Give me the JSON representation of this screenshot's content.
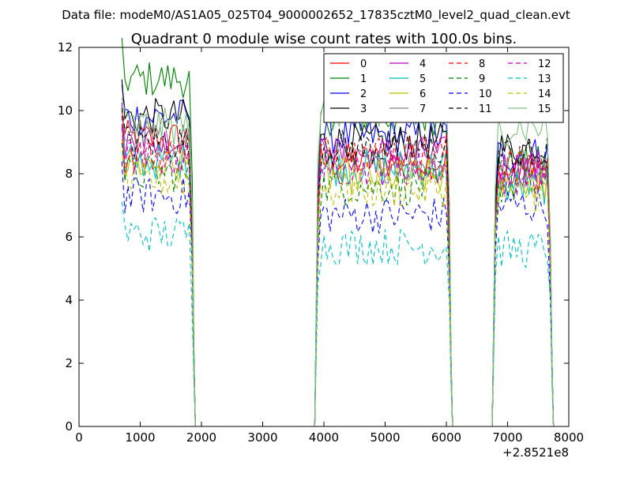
{
  "chart_data": {
    "type": "line",
    "suptitle": "Data file: modeM0/AS1A05_025T04_9000002652_17835cztM0_level2_quad_clean.evt",
    "title": "Quadrant 0 module wise count rates with 100.0s bins.",
    "xlabel": "",
    "ylabel": "",
    "x_offset_label": "+2.8521e8",
    "xlim": [
      0,
      8000
    ],
    "ylim": [
      0,
      12
    ],
    "x_ticks": [
      0,
      1000,
      2000,
      3000,
      4000,
      5000,
      6000,
      7000,
      8000
    ],
    "y_ticks": [
      0,
      2,
      4,
      6,
      8,
      10,
      12
    ],
    "grid": false,
    "legend_placement": "top-right, 4 columns",
    "segments": [
      {
        "x_start": 700,
        "x_step": 50,
        "n": 24
      },
      {
        "x_start": 3900,
        "x_step": 50,
        "n": 44
      },
      {
        "x_start": 6800,
        "x_step": 50,
        "n": 19
      }
    ],
    "gap_level": 0,
    "series": [
      {
        "name": "0",
        "color": "#ff0000",
        "dash": "solid",
        "base": [
          9.1,
          8.4,
          8.0
        ]
      },
      {
        "name": "1",
        "color": "#008000",
        "dash": "solid",
        "base": [
          11.0,
          9.8,
          8.3
        ]
      },
      {
        "name": "2",
        "color": "#0000ff",
        "dash": "solid",
        "base": [
          9.8,
          9.2,
          8.6
        ]
      },
      {
        "name": "3",
        "color": "#000000",
        "dash": "solid",
        "base": [
          9.8,
          9.0,
          8.8
        ]
      },
      {
        "name": "4",
        "color": "#bf00bf",
        "dash": "solid",
        "base": [
          9.0,
          8.6,
          8.2
        ]
      },
      {
        "name": "5",
        "color": "#00bfbf",
        "dash": "solid",
        "base": [
          8.4,
          8.2,
          7.6
        ]
      },
      {
        "name": "6",
        "color": "#bfbf00",
        "dash": "solid",
        "base": [
          8.3,
          7.9,
          7.7
        ]
      },
      {
        "name": "7",
        "color": "#808080",
        "dash": "solid",
        "base": [
          9.2,
          8.3,
          8.3
        ]
      },
      {
        "name": "8",
        "color": "#ff0000",
        "dash": "dashed",
        "base": [
          8.6,
          8.7,
          8.3
        ]
      },
      {
        "name": "9",
        "color": "#008000",
        "dash": "dashed",
        "base": [
          8.0,
          7.6,
          7.6
        ]
      },
      {
        "name": "10",
        "color": "#0000ff",
        "dash": "dashed",
        "base": [
          7.3,
          6.7,
          7.0
        ]
      },
      {
        "name": "11",
        "color": "#000000",
        "dash": "dashed",
        "base": [
          9.0,
          8.8,
          8.6
        ]
      },
      {
        "name": "12",
        "color": "#bf00bf",
        "dash": "dashed",
        "base": [
          8.5,
          8.2,
          7.9
        ]
      },
      {
        "name": "13",
        "color": "#00bfbf",
        "dash": "dashed",
        "base": [
          6.1,
          5.7,
          5.6
        ]
      },
      {
        "name": "14",
        "color": "#bfbf00",
        "dash": "dashed",
        "base": [
          7.8,
          7.5,
          7.4
        ]
      },
      {
        "name": "15",
        "color": "#80c080",
        "dash": "solid",
        "base": [
          9.5,
          10.0,
          9.5
        ]
      }
    ]
  }
}
